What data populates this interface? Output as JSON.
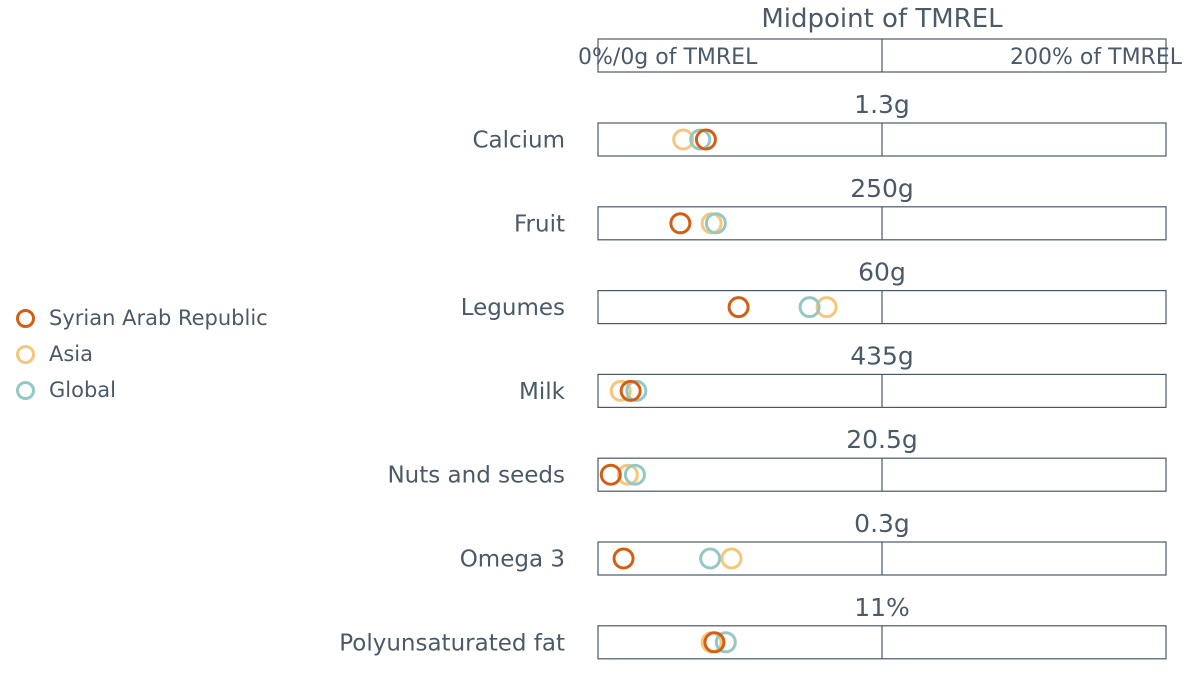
{
  "chart_data": {
    "type": "scatter",
    "title": "Midpoint of TMREL",
    "scale_left_label": "0%/0g of TMREL",
    "scale_right_label": "200% of TMREL",
    "xlim": [
      0,
      200
    ],
    "x_unit": "% of TMREL",
    "categories": [
      "Calcium",
      "Fruit",
      "Legumes",
      "Milk",
      "Nuts and seeds",
      "Omega 3",
      "Polyunsaturated fat"
    ],
    "tmrel_labels": [
      "1.3g",
      "250g",
      "60g",
      "435g",
      "20.5g",
      "0.3g",
      "11%"
    ],
    "series": [
      {
        "name": "Syrian Arab Republic",
        "color": "#d45f14",
        "values": [
          38,
          29,
          49.5,
          11.5,
          4.5,
          9,
          41
        ]
      },
      {
        "name": "Asia",
        "color": "#f6c77a",
        "values": [
          30,
          40,
          80.5,
          8,
          10.5,
          47,
          40
        ]
      },
      {
        "name": "Global",
        "color": "#95c8c4",
        "values": [
          36,
          41.5,
          74.5,
          13.5,
          13,
          39.5,
          45
        ]
      }
    ],
    "legend_position": "left",
    "grid": false
  }
}
